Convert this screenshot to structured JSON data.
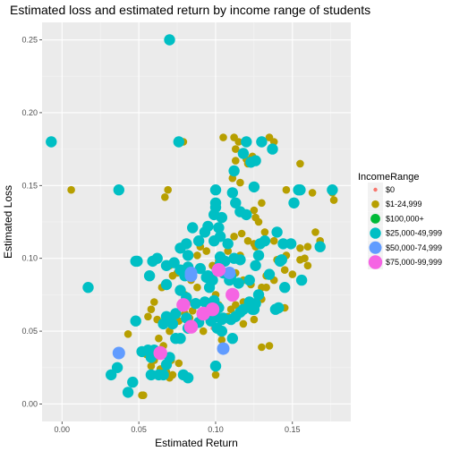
{
  "chart_data": {
    "type": "scatter",
    "title": "Estimated loss and estimated return by income range of students",
    "xlabel": "Estimated Return",
    "ylabel": "Estimated Loss",
    "xlim": [
      -0.013,
      0.188
    ],
    "ylim": [
      -0.012,
      0.262
    ],
    "x_ticks": [
      {
        "value": 0.0,
        "label": "0.00"
      },
      {
        "value": 0.05,
        "label": "0.05"
      },
      {
        "value": 0.1,
        "label": "0.10"
      },
      {
        "value": 0.15,
        "label": "0.15"
      }
    ],
    "y_ticks": [
      {
        "value": 0.0,
        "label": "0.00"
      },
      {
        "value": 0.05,
        "label": "0.05"
      },
      {
        "value": 0.1,
        "label": "0.10"
      },
      {
        "value": 0.15,
        "label": "0.15"
      },
      {
        "value": 0.2,
        "label": "0.20"
      },
      {
        "value": 0.25,
        "label": "0.25"
      }
    ],
    "grid": true,
    "background": "#ebebeb",
    "legend": {
      "title": "IncomeRange",
      "position": "right"
    },
    "series": [
      {
        "name": "$0",
        "color": "#f8766d",
        "size": 1,
        "points": [
          [
            0.098,
            0.052
          ],
          [
            0.109,
            0.088
          ]
        ]
      },
      {
        "name": "$1-24,999",
        "color": "#b79f00",
        "size": 2,
        "points": [
          [
            0.006,
            0.147
          ],
          [
            0.067,
            0.142
          ],
          [
            0.069,
            0.147
          ],
          [
            0.079,
            0.18
          ],
          [
            0.105,
            0.183
          ],
          [
            0.112,
            0.183
          ],
          [
            0.115,
            0.18
          ],
          [
            0.113,
            0.175
          ],
          [
            0.117,
            0.172
          ],
          [
            0.124,
            0.17
          ],
          [
            0.12,
            0.168
          ],
          [
            0.113,
            0.167
          ],
          [
            0.121,
            0.165
          ],
          [
            0.135,
            0.183
          ],
          [
            0.138,
            0.18
          ],
          [
            0.155,
            0.165
          ],
          [
            0.177,
            0.14
          ],
          [
            0.176,
            0.145
          ],
          [
            0.146,
            0.147
          ],
          [
            0.163,
            0.145
          ],
          [
            0.111,
            0.155
          ],
          [
            0.116,
            0.152
          ],
          [
            0.13,
            0.138
          ],
          [
            0.125,
            0.133
          ],
          [
            0.126,
            0.128
          ],
          [
            0.128,
            0.125
          ],
          [
            0.117,
            0.117
          ],
          [
            0.112,
            0.115
          ],
          [
            0.121,
            0.112
          ],
          [
            0.125,
            0.11
          ],
          [
            0.132,
            0.118
          ],
          [
            0.138,
            0.112
          ],
          [
            0.15,
            0.11
          ],
          [
            0.155,
            0.107
          ],
          [
            0.16,
            0.108
          ],
          [
            0.165,
            0.118
          ],
          [
            0.168,
            0.112
          ],
          [
            0.146,
            0.102
          ],
          [
            0.14,
            0.099
          ],
          [
            0.126,
            0.108
          ],
          [
            0.116,
            0.102
          ],
          [
            0.108,
            0.105
          ],
          [
            0.102,
            0.098
          ],
          [
            0.094,
            0.105
          ],
          [
            0.09,
            0.108
          ],
          [
            0.088,
            0.102
          ],
          [
            0.098,
            0.095
          ],
          [
            0.103,
            0.093
          ],
          [
            0.108,
            0.088
          ],
          [
            0.113,
            0.09
          ],
          [
            0.118,
            0.085
          ],
          [
            0.123,
            0.082
          ],
          [
            0.133,
            0.088
          ],
          [
            0.138,
            0.085
          ],
          [
            0.145,
            0.092
          ],
          [
            0.15,
            0.089
          ],
          [
            0.155,
            0.099
          ],
          [
            0.158,
            0.1
          ],
          [
            0.16,
            0.095
          ],
          [
            0.133,
            0.08
          ],
          [
            0.13,
            0.08
          ],
          [
            0.118,
            0.07
          ],
          [
            0.113,
            0.068
          ],
          [
            0.11,
            0.065
          ],
          [
            0.108,
            0.06
          ],
          [
            0.1,
            0.075
          ],
          [
            0.102,
            0.068
          ],
          [
            0.096,
            0.07
          ],
          [
            0.088,
            0.08
          ],
          [
            0.084,
            0.085
          ],
          [
            0.082,
            0.07
          ],
          [
            0.08,
            0.075
          ],
          [
            0.075,
            0.09
          ],
          [
            0.07,
            0.095
          ],
          [
            0.072,
            0.088
          ],
          [
            0.065,
            0.08
          ],
          [
            0.06,
            0.07
          ],
          [
            0.058,
            0.065
          ],
          [
            0.056,
            0.06
          ],
          [
            0.062,
            0.058
          ],
          [
            0.066,
            0.055
          ],
          [
            0.07,
            0.05
          ],
          [
            0.076,
            0.057
          ],
          [
            0.08,
            0.062
          ],
          [
            0.083,
            0.059
          ],
          [
            0.085,
            0.064
          ],
          [
            0.088,
            0.055
          ],
          [
            0.092,
            0.05
          ],
          [
            0.055,
            0.034
          ],
          [
            0.058,
            0.026
          ],
          [
            0.06,
            0.03
          ],
          [
            0.064,
            0.024
          ],
          [
            0.068,
            0.022
          ],
          [
            0.07,
            0.018
          ],
          [
            0.072,
            0.02
          ],
          [
            0.076,
            0.028
          ],
          [
            0.066,
            0.04
          ],
          [
            0.063,
            0.045
          ],
          [
            0.043,
            0.048
          ],
          [
            0.052,
            0.006
          ],
          [
            0.053,
            0.006
          ],
          [
            0.1,
            0.02
          ],
          [
            0.104,
            0.044
          ],
          [
            0.118,
            0.055
          ],
          [
            0.125,
            0.058
          ],
          [
            0.13,
            0.072
          ],
          [
            0.135,
            0.04
          ],
          [
            0.13,
            0.039
          ],
          [
            0.145,
            0.066
          ],
          [
            0.071,
            0.03
          ]
        ]
      },
      {
        "name": "$100,000+",
        "color": "#00ba38",
        "size": 3,
        "points": []
      },
      {
        "name": "$25,000-49,999",
        "color": "#00bfc4",
        "size": 4,
        "points": [
          [
            -0.007,
            0.18
          ],
          [
            0.017,
            0.08
          ],
          [
            0.037,
            0.147
          ],
          [
            0.07,
            0.25
          ],
          [
            0.076,
            0.18
          ],
          [
            0.085,
            0.121
          ],
          [
            0.081,
            0.11
          ],
          [
            0.077,
            0.107
          ],
          [
            0.082,
            0.102
          ],
          [
            0.089,
            0.112
          ],
          [
            0.093,
            0.118
          ],
          [
            0.095,
            0.122
          ],
          [
            0.1,
            0.135
          ],
          [
            0.1,
            0.138
          ],
          [
            0.104,
            0.128
          ],
          [
            0.102,
            0.121
          ],
          [
            0.099,
            0.13
          ],
          [
            0.1,
            0.147
          ],
          [
            0.112,
            0.16
          ],
          [
            0.111,
            0.145
          ],
          [
            0.113,
            0.138
          ],
          [
            0.116,
            0.132
          ],
          [
            0.12,
            0.13
          ],
          [
            0.12,
            0.18
          ],
          [
            0.118,
            0.172
          ],
          [
            0.123,
            0.166
          ],
          [
            0.126,
            0.167
          ],
          [
            0.125,
            0.149
          ],
          [
            0.13,
            0.18
          ],
          [
            0.137,
            0.175
          ],
          [
            0.129,
            0.11
          ],
          [
            0.132,
            0.112
          ],
          [
            0.128,
            0.102
          ],
          [
            0.126,
            0.095
          ],
          [
            0.14,
            0.118
          ],
          [
            0.144,
            0.11
          ],
          [
            0.149,
            0.11
          ],
          [
            0.143,
            0.099
          ],
          [
            0.142,
            0.098
          ],
          [
            0.151,
            0.138
          ],
          [
            0.155,
            0.147
          ],
          [
            0.154,
            0.147
          ],
          [
            0.176,
            0.147
          ],
          [
            0.168,
            0.108
          ],
          [
            0.156,
            0.085
          ],
          [
            0.145,
            0.08
          ],
          [
            0.135,
            0.089
          ],
          [
            0.122,
            0.085
          ],
          [
            0.115,
            0.083
          ],
          [
            0.109,
            0.085
          ],
          [
            0.106,
            0.098
          ],
          [
            0.103,
            0.096
          ],
          [
            0.103,
            0.101
          ],
          [
            0.101,
            0.092
          ],
          [
            0.098,
            0.085
          ],
          [
            0.096,
            0.08
          ],
          [
            0.094,
            0.087
          ],
          [
            0.09,
            0.093
          ],
          [
            0.082,
            0.094
          ],
          [
            0.08,
            0.088
          ],
          [
            0.077,
            0.092
          ],
          [
            0.073,
            0.097
          ],
          [
            0.068,
            0.095
          ],
          [
            0.062,
            0.1
          ],
          [
            0.059,
            0.098
          ],
          [
            0.048,
            0.098
          ],
          [
            0.049,
            0.098
          ],
          [
            0.057,
            0.088
          ],
          [
            0.068,
            0.082
          ],
          [
            0.077,
            0.078
          ],
          [
            0.081,
            0.073
          ],
          [
            0.087,
            0.069
          ],
          [
            0.093,
            0.07
          ],
          [
            0.099,
            0.071
          ],
          [
            0.102,
            0.066
          ],
          [
            0.104,
            0.058
          ],
          [
            0.1,
            0.06
          ],
          [
            0.097,
            0.057
          ],
          [
            0.101,
            0.052
          ],
          [
            0.105,
            0.059
          ],
          [
            0.11,
            0.058
          ],
          [
            0.113,
            0.06
          ],
          [
            0.116,
            0.063
          ],
          [
            0.111,
            0.045
          ],
          [
            0.118,
            0.065
          ],
          [
            0.122,
            0.07
          ],
          [
            0.125,
            0.065
          ],
          [
            0.128,
            0.075
          ],
          [
            0.126,
            0.069
          ],
          [
            0.124,
            0.065
          ],
          [
            0.139,
            0.065
          ],
          [
            0.141,
            0.066
          ],
          [
            0.048,
            0.057
          ],
          [
            0.056,
            0.037
          ],
          [
            0.058,
            0.032
          ],
          [
            0.06,
            0.037
          ],
          [
            0.066,
            0.02
          ],
          [
            0.068,
            0.027
          ],
          [
            0.07,
            0.032
          ],
          [
            0.074,
            0.045
          ],
          [
            0.077,
            0.045
          ],
          [
            0.079,
            0.02
          ],
          [
            0.082,
            0.018
          ],
          [
            0.063,
            0.02
          ],
          [
            0.058,
            0.02
          ],
          [
            0.052,
            0.036
          ],
          [
            0.046,
            0.015
          ],
          [
            0.032,
            0.02
          ],
          [
            0.036,
            0.025
          ],
          [
            0.043,
            0.008
          ],
          [
            0.07,
            0.058
          ],
          [
            0.066,
            0.055
          ],
          [
            0.068,
            0.06
          ],
          [
            0.072,
            0.055
          ],
          [
            0.074,
            0.062
          ],
          [
            0.081,
            0.059
          ],
          [
            0.089,
            0.056
          ],
          [
            0.082,
            0.052
          ],
          [
            0.1,
            0.026
          ],
          [
            0.104,
            0.05
          ],
          [
            0.11,
            0.088
          ],
          [
            0.112,
            0.1
          ],
          [
            0.116,
            0.099
          ],
          [
            0.108,
            0.11
          ],
          [
            0.099,
            0.112
          ],
          [
            0.103,
            0.115
          ],
          [
            0.105,
            0.09
          ],
          [
            0.095,
            0.088
          ]
        ]
      },
      {
        "name": "$50,000-74,999",
        "color": "#619cff",
        "size": 5,
        "points": [
          [
            0.037,
            0.035
          ],
          [
            0.084,
            0.088
          ],
          [
            0.084,
            0.09
          ],
          [
            0.105,
            0.038
          ],
          [
            0.109,
            0.09
          ]
        ]
      },
      {
        "name": "$75,000-99,999",
        "color": "#f564e3",
        "size": 6,
        "points": [
          [
            0.064,
            0.035
          ],
          [
            0.079,
            0.068
          ],
          [
            0.084,
            0.053
          ],
          [
            0.092,
            0.062
          ],
          [
            0.111,
            0.075
          ],
          [
            0.102,
            0.092
          ],
          [
            0.098,
            0.065
          ]
        ]
      }
    ]
  }
}
